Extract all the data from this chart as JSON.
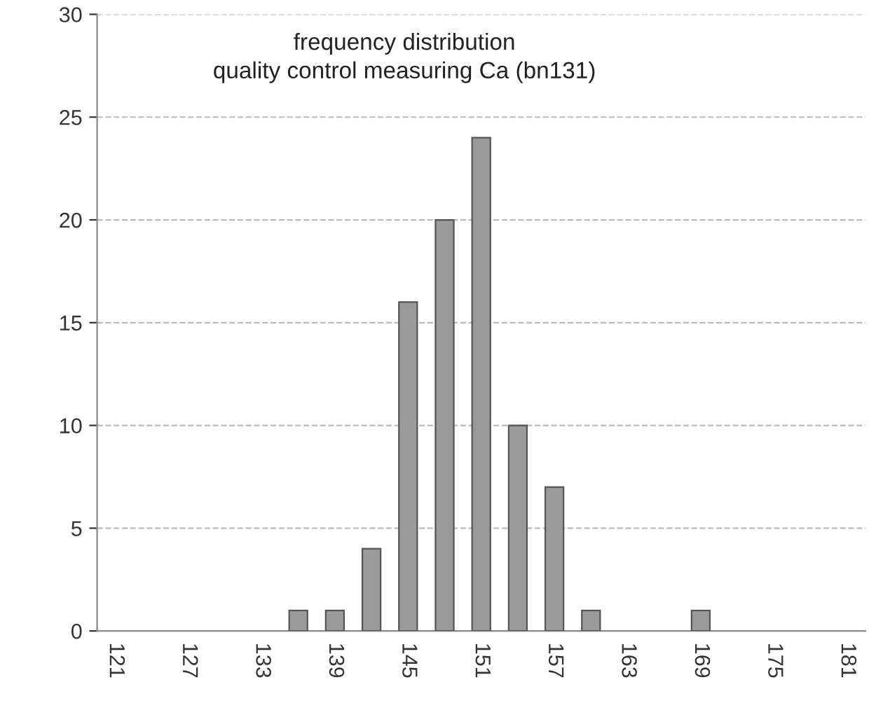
{
  "chart_data": {
    "type": "bar",
    "title": "frequency distribution\nquality control measuring Ca (bn131)",
    "categories": [
      "121",
      null,
      "127",
      null,
      "133",
      null,
      "139",
      null,
      "145",
      null,
      "151",
      null,
      "157",
      null,
      "163",
      null,
      "169",
      null,
      "175",
      null,
      "181"
    ],
    "values": [
      0,
      0,
      0,
      0,
      0,
      1,
      1,
      4,
      16,
      20,
      24,
      10,
      7,
      1,
      0,
      0,
      1,
      0,
      0,
      0,
      0
    ],
    "color": "#9a9a9a",
    "ylim": [
      0,
      30
    ],
    "yticks": [
      0,
      5,
      10,
      15,
      20,
      25,
      30
    ],
    "grid": "y",
    "legend": false
  }
}
